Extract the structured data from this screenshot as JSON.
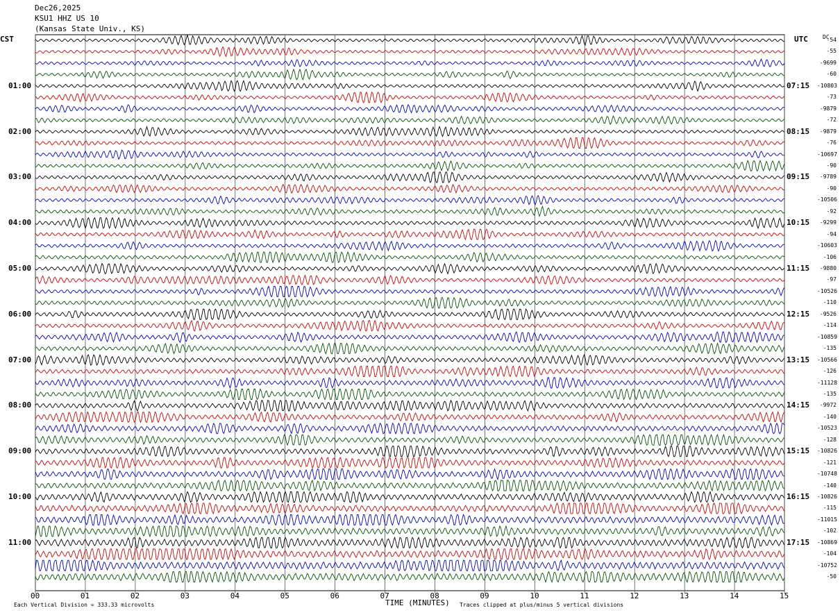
{
  "header": {
    "date": "Dec26,2025",
    "station": "KSU1 HHZ US 10",
    "site": "(Kansas State Univ., KS)"
  },
  "left_tz": "CST",
  "right_tz": "UTC",
  "dc_label": "DC",
  "footer": {
    "division_note": "Each Vertical Division =  333.33 microvolts",
    "xlabel": "TIME (MINUTES)",
    "clip_note": "Traces clipped at plus/minus 5 vertical divisions"
  },
  "colors": {
    "trace_cycle": [
      "#000000",
      "#dd0000",
      "#0000dd",
      "#005500"
    ],
    "grid": "#555555"
  },
  "chart_data": {
    "type": "line",
    "title": "KSU1 HHZ US 10",
    "xlabel": "TIME (MINUTES)",
    "x_ticks": [
      "00",
      "01",
      "02",
      "03",
      "04",
      "05",
      "06",
      "07",
      "08",
      "09",
      "10",
      "11",
      "12",
      "13",
      "14",
      "15"
    ],
    "xlim": [
      0,
      15
    ],
    "cst_hour_labels": [
      "01:00",
      "02:00",
      "03:00",
      "04:00",
      "05:00",
      "06:00",
      "07:00",
      "08:00",
      "09:00",
      "10:00",
      "11:00"
    ],
    "utc_hour_labels": [
      "07:15",
      "08:15",
      "09:15",
      "10:15",
      "11:15",
      "12:15",
      "13:15",
      "14:15",
      "15:15",
      "16:15",
      "17:15"
    ],
    "dc_offsets": [
      "-54",
      "-55",
      "-9699",
      "-60",
      "-10803",
      "-73",
      "-9879",
      "-72",
      "-9879",
      "-76",
      "-10697",
      "-90",
      "-9789",
      "-90",
      "-10506",
      "-92",
      "-9299",
      "-94",
      "-10603",
      "-106",
      "-9880",
      "-97",
      "-10526",
      "-110",
      "-9526",
      "-114",
      "-10859",
      "-135",
      "-10566",
      "-126",
      "-11128",
      "-135",
      "-9972",
      "-140",
      "-10523",
      "-128",
      "-10826",
      "-121",
      "-10748",
      "-140",
      "-10826",
      "-115",
      "-11015",
      "-102",
      "-10869",
      "-104",
      "-10752",
      "-50"
    ],
    "trace_amplitude_level": [
      0.25,
      0.25,
      0.25,
      0.25,
      0.28,
      0.28,
      0.3,
      0.28,
      0.28,
      0.28,
      0.3,
      0.3,
      0.32,
      0.32,
      0.32,
      0.32,
      0.35,
      0.35,
      0.35,
      0.35,
      0.38,
      0.38,
      0.4,
      0.4,
      0.42,
      0.42,
      0.45,
      0.45,
      0.5,
      0.5,
      0.52,
      0.52,
      0.55,
      0.55,
      0.6,
      0.6,
      0.65,
      0.65,
      0.7,
      0.72,
      0.78,
      0.8,
      0.85,
      0.85,
      0.9,
      0.95,
      1.0,
      1.0
    ],
    "trace_count": 48,
    "traces_per_hour": 4
  }
}
